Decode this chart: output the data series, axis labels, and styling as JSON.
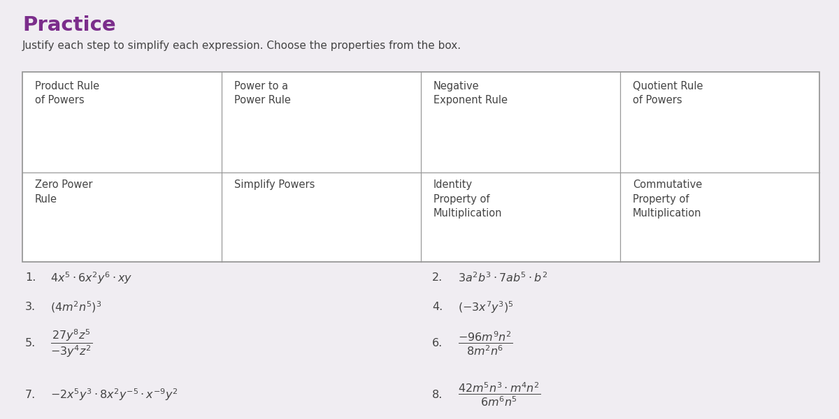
{
  "title": "Practice",
  "subtitle": "Justify each step to simplify each expression. Choose the properties from the box.",
  "title_color": "#7b2d8b",
  "text_color": "#444444",
  "bg_color": "#f0edf2",
  "box_bg": "#ffffff",
  "box_border": "#999999",
  "box_entries": [
    [
      "Product Rule\nof Powers",
      "Power to a\nPower Rule",
      "Negative\nExponent Rule",
      "Quotient Rule\nof Powers"
    ],
    [
      "Zero Power\nRule",
      "Simplify Powers",
      "Identity\nProperty of\nMultiplication",
      "Commutative\nProperty of\nMultiplication"
    ]
  ],
  "problems_left": [
    {
      "num": "1.",
      "text": "$4x^5 \\cdot 6x^2y^6 \\cdot xy$"
    },
    {
      "num": "3.",
      "text": "$(4m^2n^5)^3$"
    },
    {
      "num": "5.",
      "text": "$\\dfrac{27y^8z^5}{-3y^4z^2}$"
    },
    {
      "num": "7.",
      "text": "$-2x^5y^3 \\cdot 8x^2y^{-5} \\cdot x^{-9}y^2$"
    }
  ],
  "problems_right": [
    {
      "num": "2.",
      "text": "$3a^2b^3 \\cdot 7ab^5 \\cdot b^2$"
    },
    {
      "num": "4.",
      "text": "$(-3x^7y^3)^5$"
    },
    {
      "num": "6.",
      "text": "$\\dfrac{-96m^9n^2}{8m^2n^6}$"
    },
    {
      "num": "8.",
      "text": "$\\dfrac{42m^5n^3 \\cdot m^4n^2}{6m^6n^5}$"
    }
  ],
  "figsize": [
    12.0,
    6.0
  ],
  "dpi": 100
}
